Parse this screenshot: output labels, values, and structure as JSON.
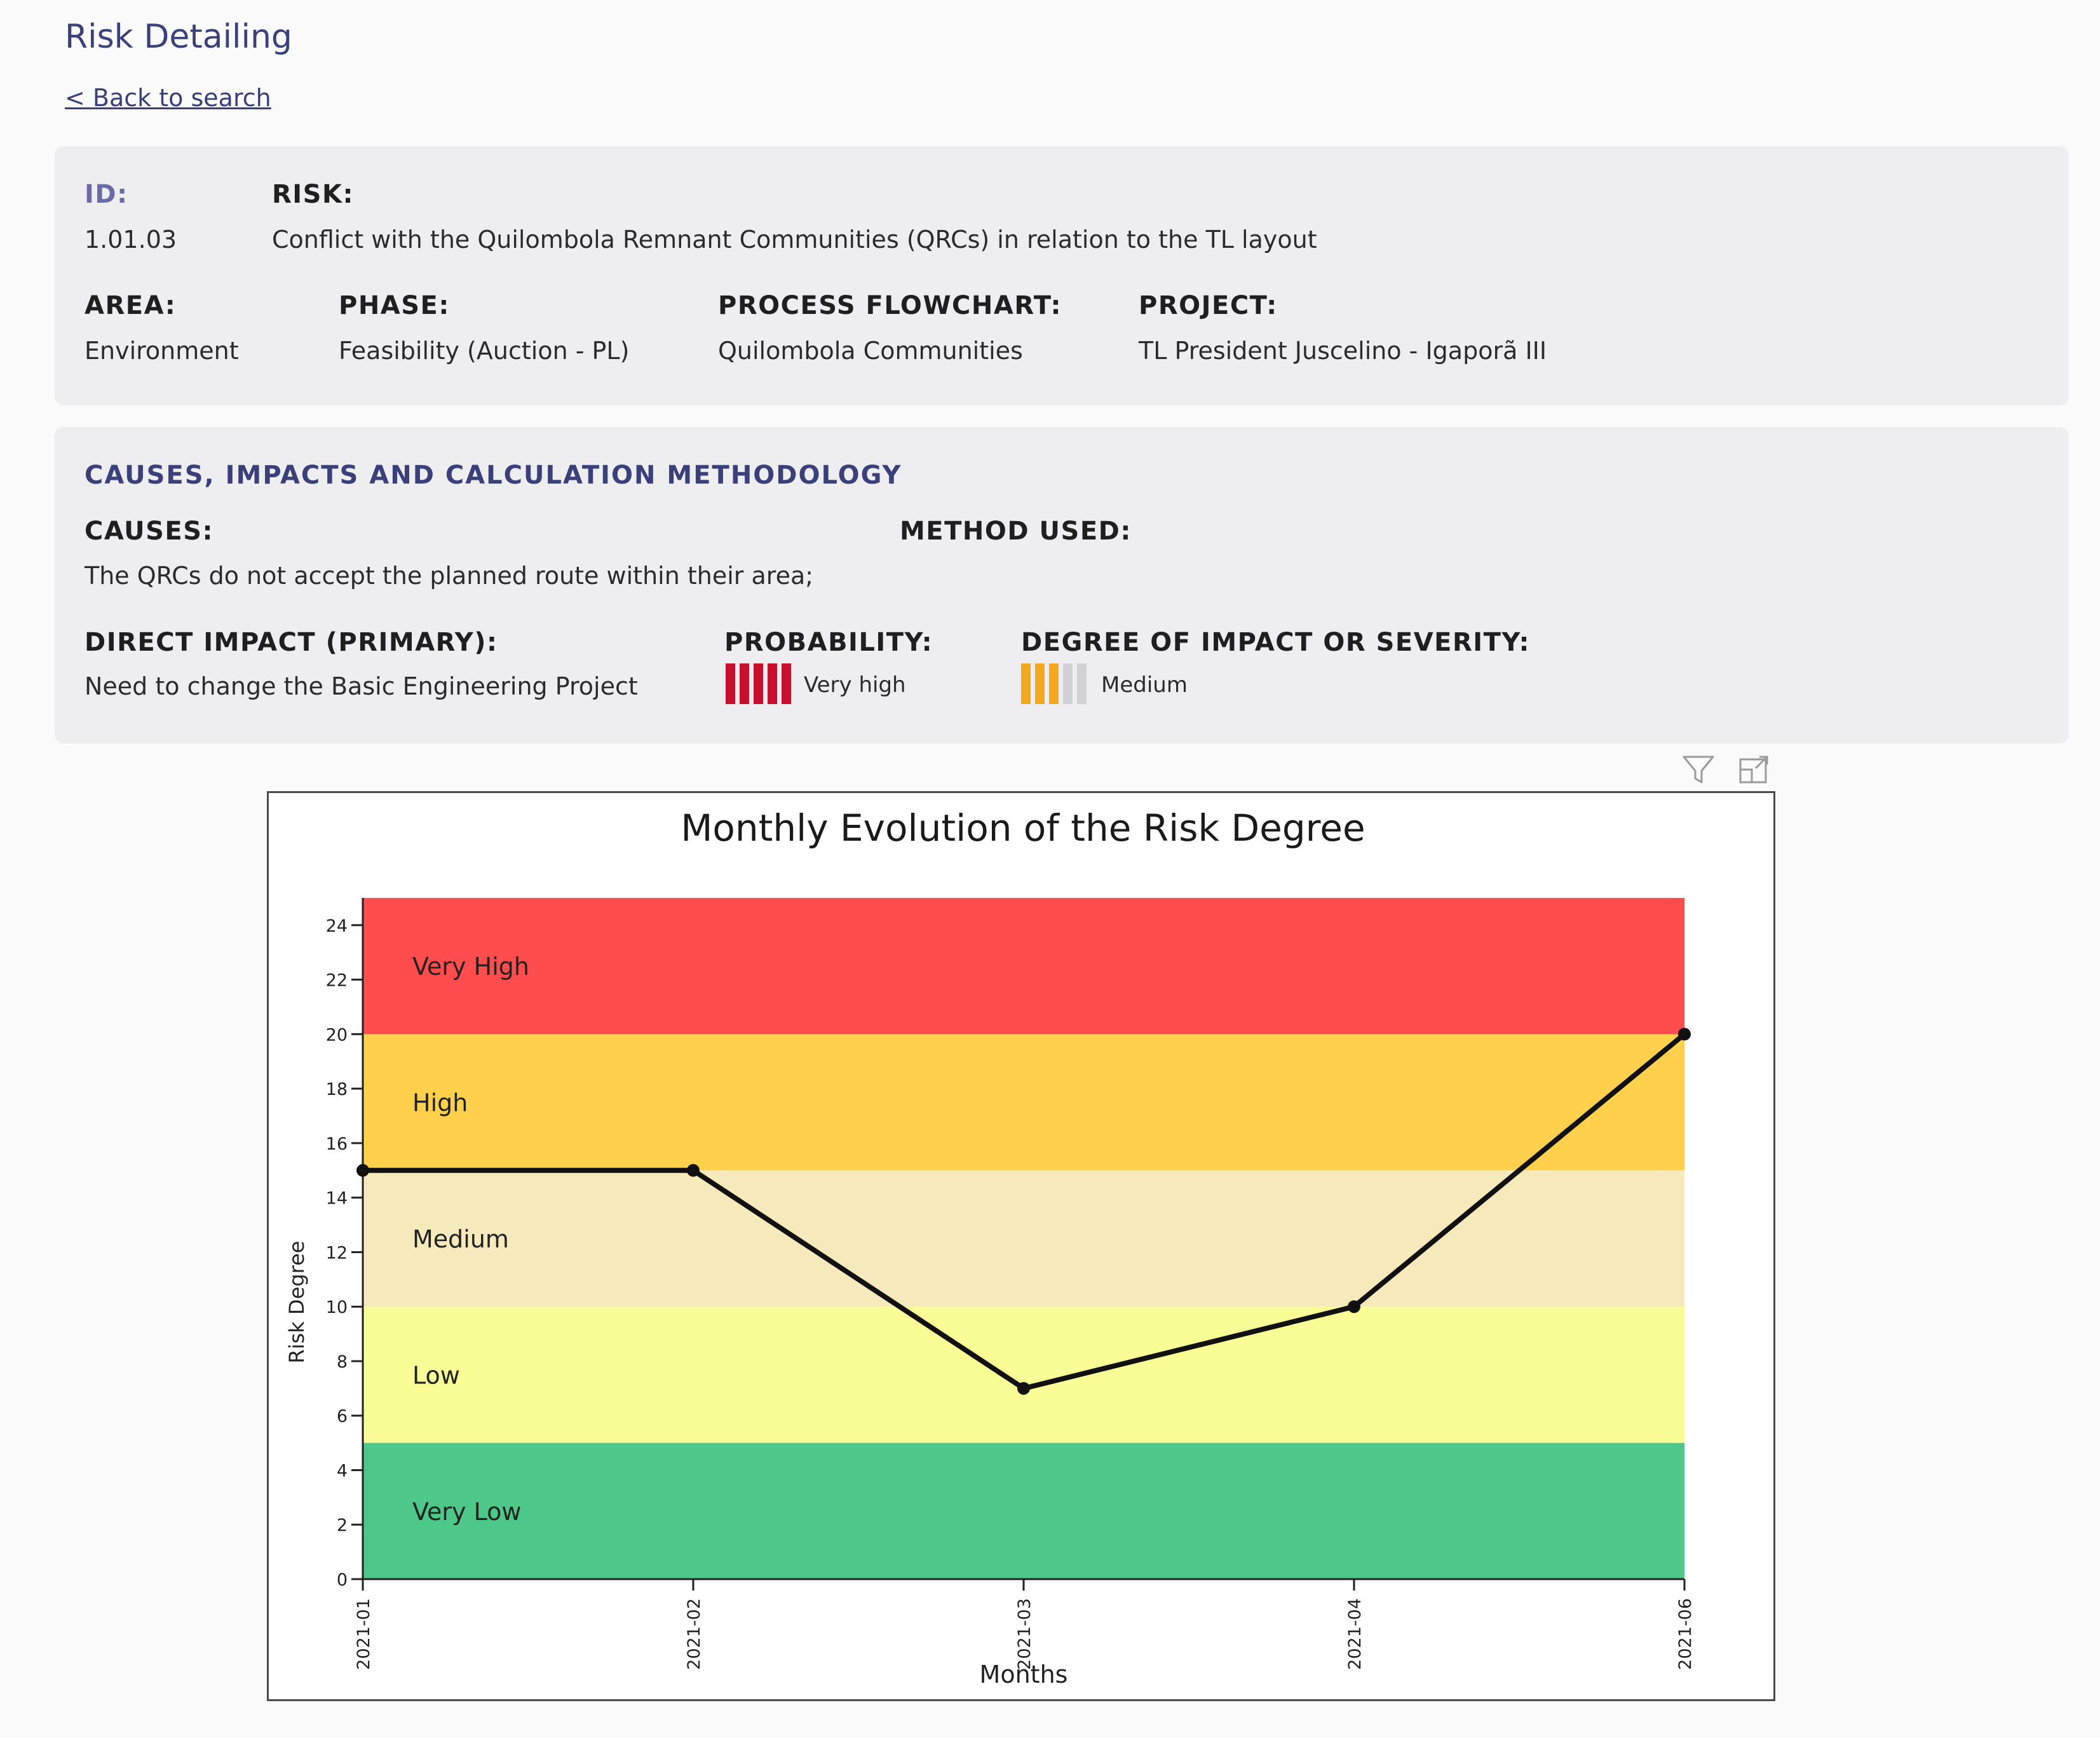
{
  "header": {
    "title": "Risk Detailing",
    "back_link": "< Back to search"
  },
  "summary": {
    "id_label": "ID:",
    "id_value": "1.01.03",
    "risk_label": "RISK:",
    "risk_value": "Conflict with the Quilombola Remnant Communities (QRCs) in relation to the TL layout",
    "area_label": "AREA:",
    "area_value": "Environment",
    "phase_label": "PHASE:",
    "phase_value": "Feasibility (Auction - PL)",
    "flowchart_label": "PROCESS FLOWCHART:",
    "flowchart_value": "Quilombola Communities",
    "project_label": "PROJECT:",
    "project_value": "TL President Juscelino - Igaporã III"
  },
  "methodology": {
    "section_title": "CAUSES, IMPACTS AND CALCULATION METHODOLOGY",
    "causes_label": "CAUSES:",
    "causes_value": "The QRCs do not accept the planned route within their area;",
    "method_label": "METHOD USED:",
    "impact_label": "DIRECT IMPACT (PRIMARY):",
    "impact_value": "Need to change the Basic Engineering Project",
    "probability_label": "PROBABILITY:",
    "probability_value": "Very high",
    "probability_level": 5,
    "probability_color": "#c8102e",
    "severity_label": "DEGREE OF IMPACT OR SEVERITY:",
    "severity_value": "Medium",
    "severity_level": 3,
    "severity_color": "#f4a81d",
    "scale_inactive_color": "#d2d2d6",
    "scale_max": 5
  },
  "toolbar": {
    "filter_icon": "filter-icon",
    "expand_icon": "expand-icon"
  },
  "chart_data": {
    "type": "line",
    "title": "Monthly Evolution of the Risk Degree",
    "xlabel": "Months",
    "ylabel": "Risk Degree",
    "categories": [
      "2021-01",
      "2021-02",
      "2021-03",
      "2021-04",
      "2021-06"
    ],
    "series": [
      {
        "values": [
          15,
          15,
          7,
          10,
          20
        ],
        "color": "#111111"
      }
    ],
    "ylim": [
      0,
      25
    ],
    "yticks": [
      0,
      2,
      4,
      6,
      8,
      10,
      12,
      14,
      16,
      18,
      20,
      22,
      24
    ],
    "bands": [
      {
        "label": "Very Low",
        "from": 0,
        "to": 5,
        "color": "#4dc888"
      },
      {
        "label": "Low",
        "from": 5,
        "to": 10,
        "color": "#f8fd96"
      },
      {
        "label": "Medium",
        "from": 10,
        "to": 15,
        "color": "#f6e9bb"
      },
      {
        "label": "High",
        "from": 15,
        "to": 20,
        "color": "#fed04c"
      },
      {
        "label": "Very High",
        "from": 20,
        "to": 25,
        "color": "#ff4c4c"
      }
    ],
    "grid": false
  }
}
